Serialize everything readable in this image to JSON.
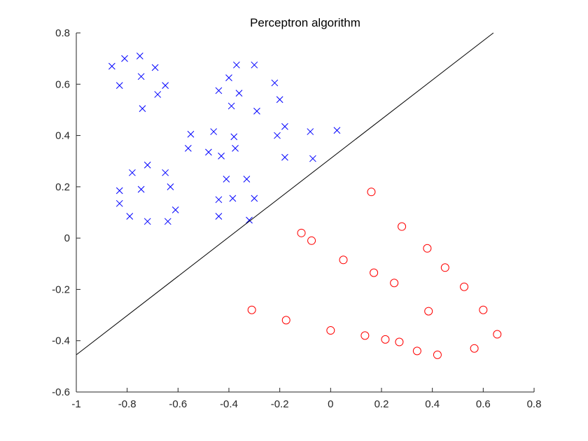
{
  "chart_data": {
    "type": "scatter",
    "title": "Perceptron algorithm",
    "xlabel": "",
    "ylabel": "",
    "xlim": [
      -1,
      0.8
    ],
    "ylim": [
      -0.6,
      0.8
    ],
    "xticks": [
      "-1",
      "-0.8",
      "-0.6",
      "-0.4",
      "-0.2",
      "0",
      "0.2",
      "0.4",
      "0.6",
      "0.8"
    ],
    "yticks": [
      "-0.6",
      "-0.4",
      "-0.2",
      "0",
      "0.2",
      "0.4",
      "0.6",
      "0.8"
    ],
    "grid": false,
    "series": [
      {
        "marker": "x",
        "color": "#0000ff",
        "points": [
          [
            -0.86,
            0.67
          ],
          [
            -0.81,
            0.7
          ],
          [
            -0.75,
            0.71
          ],
          [
            -0.69,
            0.665
          ],
          [
            -0.83,
            0.595
          ],
          [
            -0.745,
            0.63
          ],
          [
            -0.65,
            0.595
          ],
          [
            -0.68,
            0.56
          ],
          [
            -0.74,
            0.505
          ],
          [
            -0.37,
            0.675
          ],
          [
            -0.3,
            0.675
          ],
          [
            -0.4,
            0.625
          ],
          [
            -0.44,
            0.575
          ],
          [
            -0.36,
            0.565
          ],
          [
            -0.22,
            0.605
          ],
          [
            -0.2,
            0.54
          ],
          [
            -0.39,
            0.515
          ],
          [
            -0.29,
            0.495
          ],
          [
            -0.55,
            0.405
          ],
          [
            -0.46,
            0.415
          ],
          [
            -0.38,
            0.395
          ],
          [
            -0.21,
            0.4
          ],
          [
            -0.18,
            0.435
          ],
          [
            -0.08,
            0.415
          ],
          [
            0.025,
            0.42
          ],
          [
            -0.56,
            0.35
          ],
          [
            -0.48,
            0.335
          ],
          [
            -0.43,
            0.32
          ],
          [
            -0.375,
            0.35
          ],
          [
            -0.18,
            0.315
          ],
          [
            -0.07,
            0.31
          ],
          [
            -0.78,
            0.255
          ],
          [
            -0.72,
            0.285
          ],
          [
            -0.65,
            0.255
          ],
          [
            -0.83,
            0.185
          ],
          [
            -0.745,
            0.19
          ],
          [
            -0.63,
            0.2
          ],
          [
            -0.83,
            0.135
          ],
          [
            -0.61,
            0.11
          ],
          [
            -0.79,
            0.085
          ],
          [
            -0.72,
            0.065
          ],
          [
            -0.64,
            0.065
          ],
          [
            -0.41,
            0.23
          ],
          [
            -0.33,
            0.23
          ],
          [
            -0.44,
            0.15
          ],
          [
            -0.385,
            0.155
          ],
          [
            -0.3,
            0.155
          ],
          [
            -0.44,
            0.085
          ],
          [
            -0.32,
            0.07
          ]
        ]
      },
      {
        "marker": "o",
        "color": "#ff0000",
        "points": [
          [
            0.16,
            0.18
          ],
          [
            0.28,
            0.045
          ],
          [
            -0.115,
            0.02
          ],
          [
            -0.075,
            -0.01
          ],
          [
            0.38,
            -0.04
          ],
          [
            0.05,
            -0.085
          ],
          [
            0.17,
            -0.135
          ],
          [
            0.45,
            -0.115
          ],
          [
            0.25,
            -0.175
          ],
          [
            0.525,
            -0.19
          ],
          [
            -0.31,
            -0.28
          ],
          [
            0.385,
            -0.285
          ],
          [
            0.6,
            -0.28
          ],
          [
            -0.175,
            -0.32
          ],
          [
            0.0,
            -0.36
          ],
          [
            0.135,
            -0.38
          ],
          [
            0.215,
            -0.395
          ],
          [
            0.27,
            -0.405
          ],
          [
            0.655,
            -0.375
          ],
          [
            0.34,
            -0.44
          ],
          [
            0.42,
            -0.455
          ],
          [
            0.565,
            -0.43
          ]
        ]
      },
      {
        "marker": "line",
        "color": "#000000",
        "points": [
          [
            -1.0,
            -0.455
          ],
          [
            0.64,
            0.8
          ]
        ]
      }
    ]
  }
}
